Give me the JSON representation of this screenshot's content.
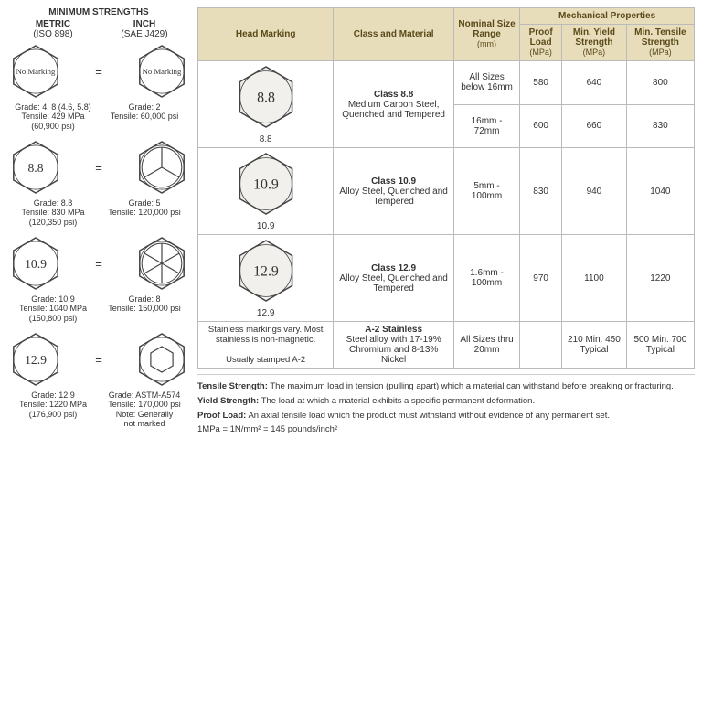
{
  "left": {
    "title": "MINIMUM STRENGTHS",
    "metric_h": "METRIC",
    "metric_sub": "(ISO 898)",
    "inch_h": "INCH",
    "inch_sub": "(SAE J429)",
    "rows": [
      {
        "m_mark": "No Marking",
        "i_mark": "No Marking",
        "m_spokes": 0,
        "i_spokes": 0,
        "m_small": true,
        "i_small": true,
        "m_cap": "Grade: 4, 8 (4.6, 5.8)\nTensile: 429 MPa\n(60,900 psi)",
        "i_cap": "Grade: 2\nTensile: 60,000 psi"
      },
      {
        "m_mark": "8.8",
        "i_mark": "",
        "m_spokes": 0,
        "i_spokes": 3,
        "m_cap": "Grade: 8.8\nTensile: 830 MPa\n(120,350 psi)",
        "i_cap": "Grade: 5\nTensile: 120,000 psi"
      },
      {
        "m_mark": "10.9",
        "i_mark": "",
        "m_spokes": 0,
        "i_spokes": 6,
        "m_cap": "Grade: 10.9\nTensile: 1040 MPa\n(150,800 psi)",
        "i_cap": "Grade: 8\nTensile: 150,000 psi"
      },
      {
        "m_mark": "12.9",
        "i_mark": "",
        "m_spokes": 0,
        "i_spokes": -1,
        "m_cap": "Grade: 12.9\nTensile: 1220 MPa\n(176,900 psi)",
        "i_cap": "Grade: ASTM-A574\nTensile: 170,000 psi\nNote: Generally\nnot marked"
      }
    ]
  },
  "table": {
    "headers": {
      "head_marking": "Head Marking",
      "class_material": "Class and Material",
      "nominal": "Nominal Size Range",
      "nominal_unit": "(mm)",
      "mech": "Mechanical Properties",
      "proof": "Proof Load",
      "proof_unit": "(MPa)",
      "yield": "Min. Yield Strength",
      "yield_unit": "(MPa)",
      "tensile": "Min. Tensile Strength",
      "tensile_unit": "(MPa)"
    },
    "rows": [
      {
        "mark": "8.8",
        "marking_label": "8.8",
        "class": "Class 8.8",
        "material": "Medium Carbon Steel, Quenched and Tempered",
        "sizes": [
          {
            "range": "All Sizes below 16mm",
            "proof": "580",
            "yield": "640",
            "tensile": "800"
          },
          {
            "range": "16mm - 72mm",
            "proof": "600",
            "yield": "660",
            "tensile": "830"
          }
        ]
      },
      {
        "mark": "10.9",
        "marking_label": "10.9",
        "class": "Class 10.9",
        "material": "Alloy Steel, Quenched and Tempered",
        "sizes": [
          {
            "range": "5mm - 100mm",
            "proof": "830",
            "yield": "940",
            "tensile": "1040"
          }
        ]
      },
      {
        "mark": "12.9",
        "marking_label": "12.9",
        "class": "Class 12.9",
        "material": "Alloy Steel, Quenched and Tempered",
        "sizes": [
          {
            "range": "1.6mm - 100mm",
            "proof": "970",
            "yield": "1100",
            "tensile": "1220"
          }
        ]
      },
      {
        "mark_text": "Stainless markings vary. Most stainless is non-magnetic.\n\nUsually stamped A-2",
        "class": "A-2 Stainless",
        "material": "Steel alloy with 17-19% Chromium and 8-13% Nickel",
        "sizes": [
          {
            "range": "All Sizes thru 20mm",
            "proof": "",
            "yield": "210 Min. 450 Typical",
            "tensile": "500 Min. 700 Typical"
          }
        ]
      }
    ]
  },
  "notes": {
    "n1": "Tensile Strength: The maximum load in tension (pulling apart) which a material can withstand before breaking or fracturing.",
    "n2": "Yield Strength: The load at which a material exhibits a specific permanent deformation.",
    "n3": "Proof Load: An axial tensile load which the product must withstand without evidence of any permanent set.",
    "n4": "1MPa = 1N/mm² = 145 pounds/inch²"
  },
  "style": {
    "hex_fill": "#f2f0ec",
    "hex_stroke": "#444",
    "header_bg": "#e8ddbb"
  }
}
